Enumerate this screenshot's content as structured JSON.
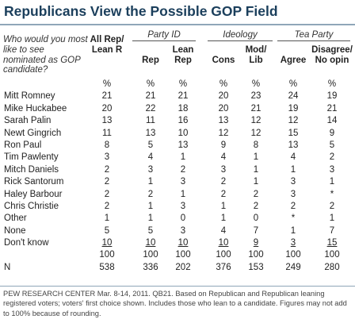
{
  "title": "Republicans View the Possible GOP Field",
  "question": "Who would you most like to see nominated as GOP candidate?",
  "groups": {
    "party_id": "Party ID",
    "ideology": "Ideology",
    "tea_party": "Tea Party"
  },
  "columns": {
    "all": "All Rep/ Lean R",
    "rep": "Rep",
    "lean_rep": "Lean Rep",
    "cons": "Cons",
    "modlib": "Mod/ Lib",
    "agree": "Agree",
    "disagree": "Disagree/ No opin"
  },
  "rows": [
    {
      "label": "",
      "values": [
        "%",
        "%",
        "%",
        "%",
        "%",
        "%",
        "%"
      ]
    },
    {
      "label": "Mitt Romney",
      "values": [
        "21",
        "21",
        "21",
        "20",
        "23",
        "24",
        "19"
      ]
    },
    {
      "label": "Mike Huckabee",
      "values": [
        "20",
        "22",
        "18",
        "20",
        "21",
        "19",
        "21"
      ]
    },
    {
      "label": "Sarah Palin",
      "values": [
        "13",
        "11",
        "16",
        "13",
        "12",
        "12",
        "14"
      ]
    },
    {
      "label": "Newt Gingrich",
      "values": [
        "11",
        "13",
        "10",
        "12",
        "12",
        "15",
        "9"
      ]
    },
    {
      "label": "Ron Paul",
      "values": [
        "8",
        "5",
        "13",
        "9",
        "8",
        "13",
        "5"
      ]
    },
    {
      "label": "Tim Pawlenty",
      "values": [
        "3",
        "4",
        "1",
        "4",
        "1",
        "4",
        "2"
      ]
    },
    {
      "label": "Mitch Daniels",
      "values": [
        "2",
        "3",
        "2",
        "3",
        "1",
        "1",
        "3"
      ]
    },
    {
      "label": "Rick Santorum",
      "values": [
        "2",
        "1",
        "3",
        "2",
        "1",
        "3",
        "1"
      ]
    },
    {
      "label": "Haley Barbour",
      "values": [
        "2",
        "2",
        "1",
        "2",
        "2",
        "3",
        "*"
      ]
    },
    {
      "label": "Chris Christie",
      "values": [
        "2",
        "1",
        "3",
        "1",
        "2",
        "2",
        "2"
      ]
    },
    {
      "label": "Other",
      "values": [
        "1",
        "1",
        "0",
        "1",
        "0",
        "*",
        "1"
      ]
    },
    {
      "label": "None",
      "values": [
        "5",
        "5",
        "3",
        "4",
        "7",
        "1",
        "7"
      ]
    },
    {
      "label": "Don't know",
      "values": [
        "10",
        "10",
        "10",
        "10",
        "9",
        "3",
        "15"
      ],
      "underline": true
    },
    {
      "label": "",
      "values": [
        "100",
        "100",
        "100",
        "100",
        "100",
        "100",
        "100"
      ]
    },
    {
      "label": "N",
      "values": [
        "538",
        "336",
        "202",
        "376",
        "153",
        "249",
        "280"
      ]
    }
  ],
  "source": "PEW RESEARCH CENTER Mar. 8-14, 2011. QB21. Based on Republican and Republican leaning registered voters; voters' first choice shown. Includes those who lean to a candidate. Figures may not add to 100% because of rounding."
}
